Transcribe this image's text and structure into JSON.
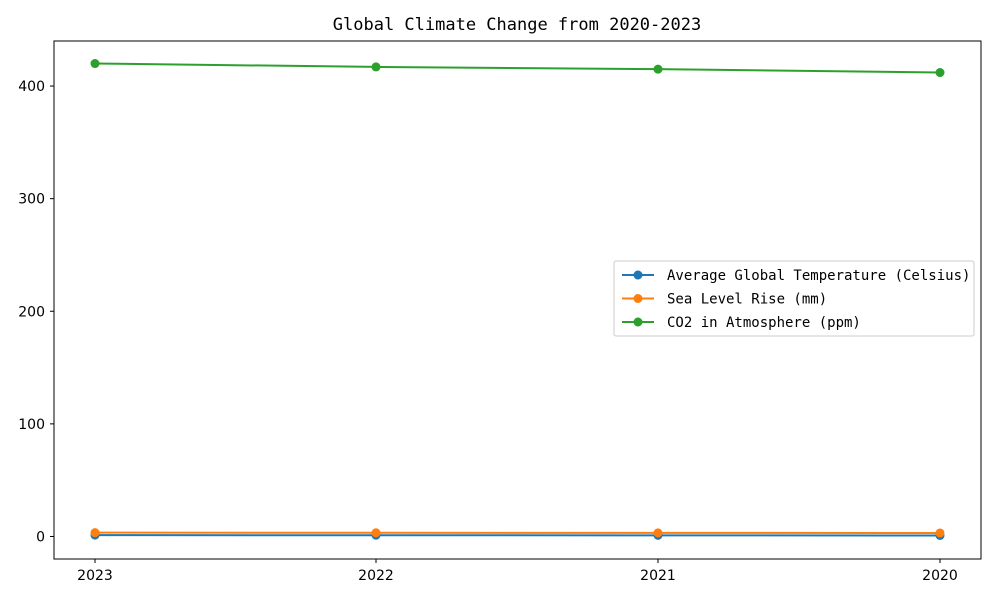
{
  "chart_data": {
    "type": "line",
    "title": "Global Climate Change from 2020-2023",
    "xlabel": "",
    "ylabel": "",
    "categories": [
      "2023",
      "2022",
      "2021",
      "2020"
    ],
    "ylim": [
      -20,
      440
    ],
    "yticks": [
      0,
      100,
      200,
      300,
      400
    ],
    "grid": false,
    "legend_position": "center-right",
    "series": [
      {
        "name": "Average Global Temperature (Celsius)",
        "color": "#1f77b4",
        "marker": "circle",
        "values": [
          1.2,
          1.1,
          1.0,
          0.9
        ]
      },
      {
        "name": "Sea Level Rise (mm)",
        "color": "#ff7f0e",
        "marker": "circle",
        "values": [
          3.4,
          3.3,
          3.2,
          3.1
        ]
      },
      {
        "name": "CO2 in Atmosphere (ppm)",
        "color": "#2ca02c",
        "marker": "circle",
        "values": [
          420,
          417,
          415,
          412
        ]
      }
    ]
  }
}
